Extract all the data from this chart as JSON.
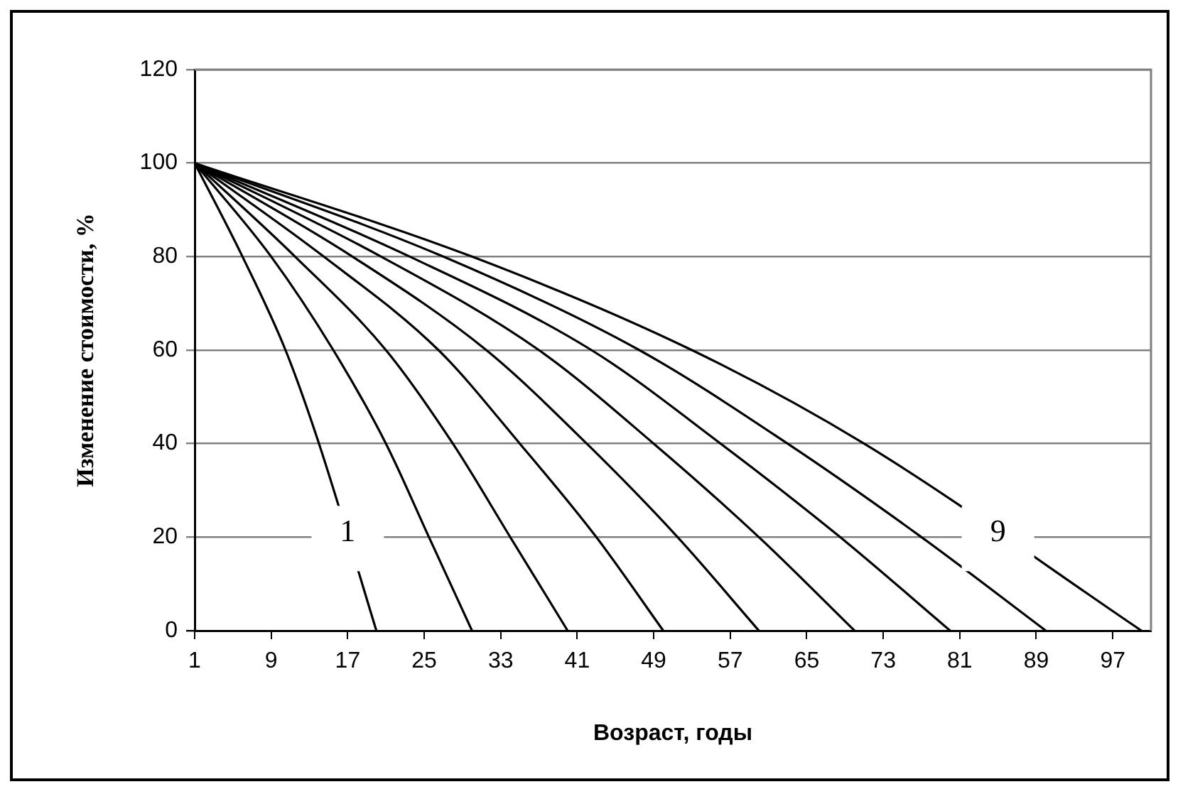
{
  "chart_data": {
    "type": "line",
    "xlabel": "Возраст, годы",
    "ylabel": "Изменение стоимости, %",
    "xlim": [
      1,
      101
    ],
    "xticks": [
      1,
      9,
      17,
      25,
      33,
      41,
      49,
      57,
      65,
      73,
      81,
      89,
      97
    ],
    "ylim": [
      0,
      120
    ],
    "yticks": [
      0,
      20,
      40,
      60,
      80,
      100,
      120
    ],
    "grid": "y",
    "legend": false,
    "line_style": "solid",
    "annotations": [
      {
        "text": "1",
        "x": 17,
        "y": 20
      },
      {
        "text": "9",
        "x": 85,
        "y": 20
      }
    ],
    "series": [
      {
        "color": "#000000",
        "x": [
          1,
          6,
          10.5,
          14,
          17,
          20
        ],
        "values": [
          100,
          80,
          60,
          40,
          null,
          0
        ]
      },
      {
        "color": "#000000",
        "x": [
          1,
          9,
          15.5,
          21,
          25.5,
          30
        ],
        "values": [
          100,
          80,
          60,
          40,
          20,
          0
        ]
      },
      {
        "color": "#000000",
        "x": [
          1,
          11.5,
          21,
          28,
          34,
          40
        ],
        "values": [
          100,
          80,
          60,
          40,
          20,
          0
        ]
      },
      {
        "color": "#000000",
        "x": [
          1,
          14.5,
          26.5,
          35,
          43,
          50
        ],
        "values": [
          100,
          80,
          60,
          40,
          20,
          0
        ]
      },
      {
        "color": "#000000",
        "x": [
          1,
          17.5,
          31.5,
          42,
          51.5,
          60
        ],
        "values": [
          100,
          80,
          60,
          40,
          20,
          0
        ]
      },
      {
        "color": "#000000",
        "x": [
          1,
          20.5,
          37,
          49,
          60,
          70
        ],
        "values": [
          100,
          80,
          60,
          40,
          20,
          0
        ]
      },
      {
        "color": "#000000",
        "x": [
          1,
          23.5,
          42.5,
          56,
          68.5,
          80
        ],
        "values": [
          100,
          80,
          60,
          40,
          20,
          0
        ]
      },
      {
        "color": "#000000",
        "x": [
          1,
          27,
          47.5,
          63,
          77,
          90
        ],
        "values": [
          100,
          80,
          60,
          40,
          20,
          0
        ]
      },
      {
        "color": "#000000",
        "x": [
          1,
          30,
          53,
          71,
          85.5,
          100
        ],
        "values": [
          100,
          80,
          60,
          40,
          null,
          0
        ]
      }
    ]
  }
}
